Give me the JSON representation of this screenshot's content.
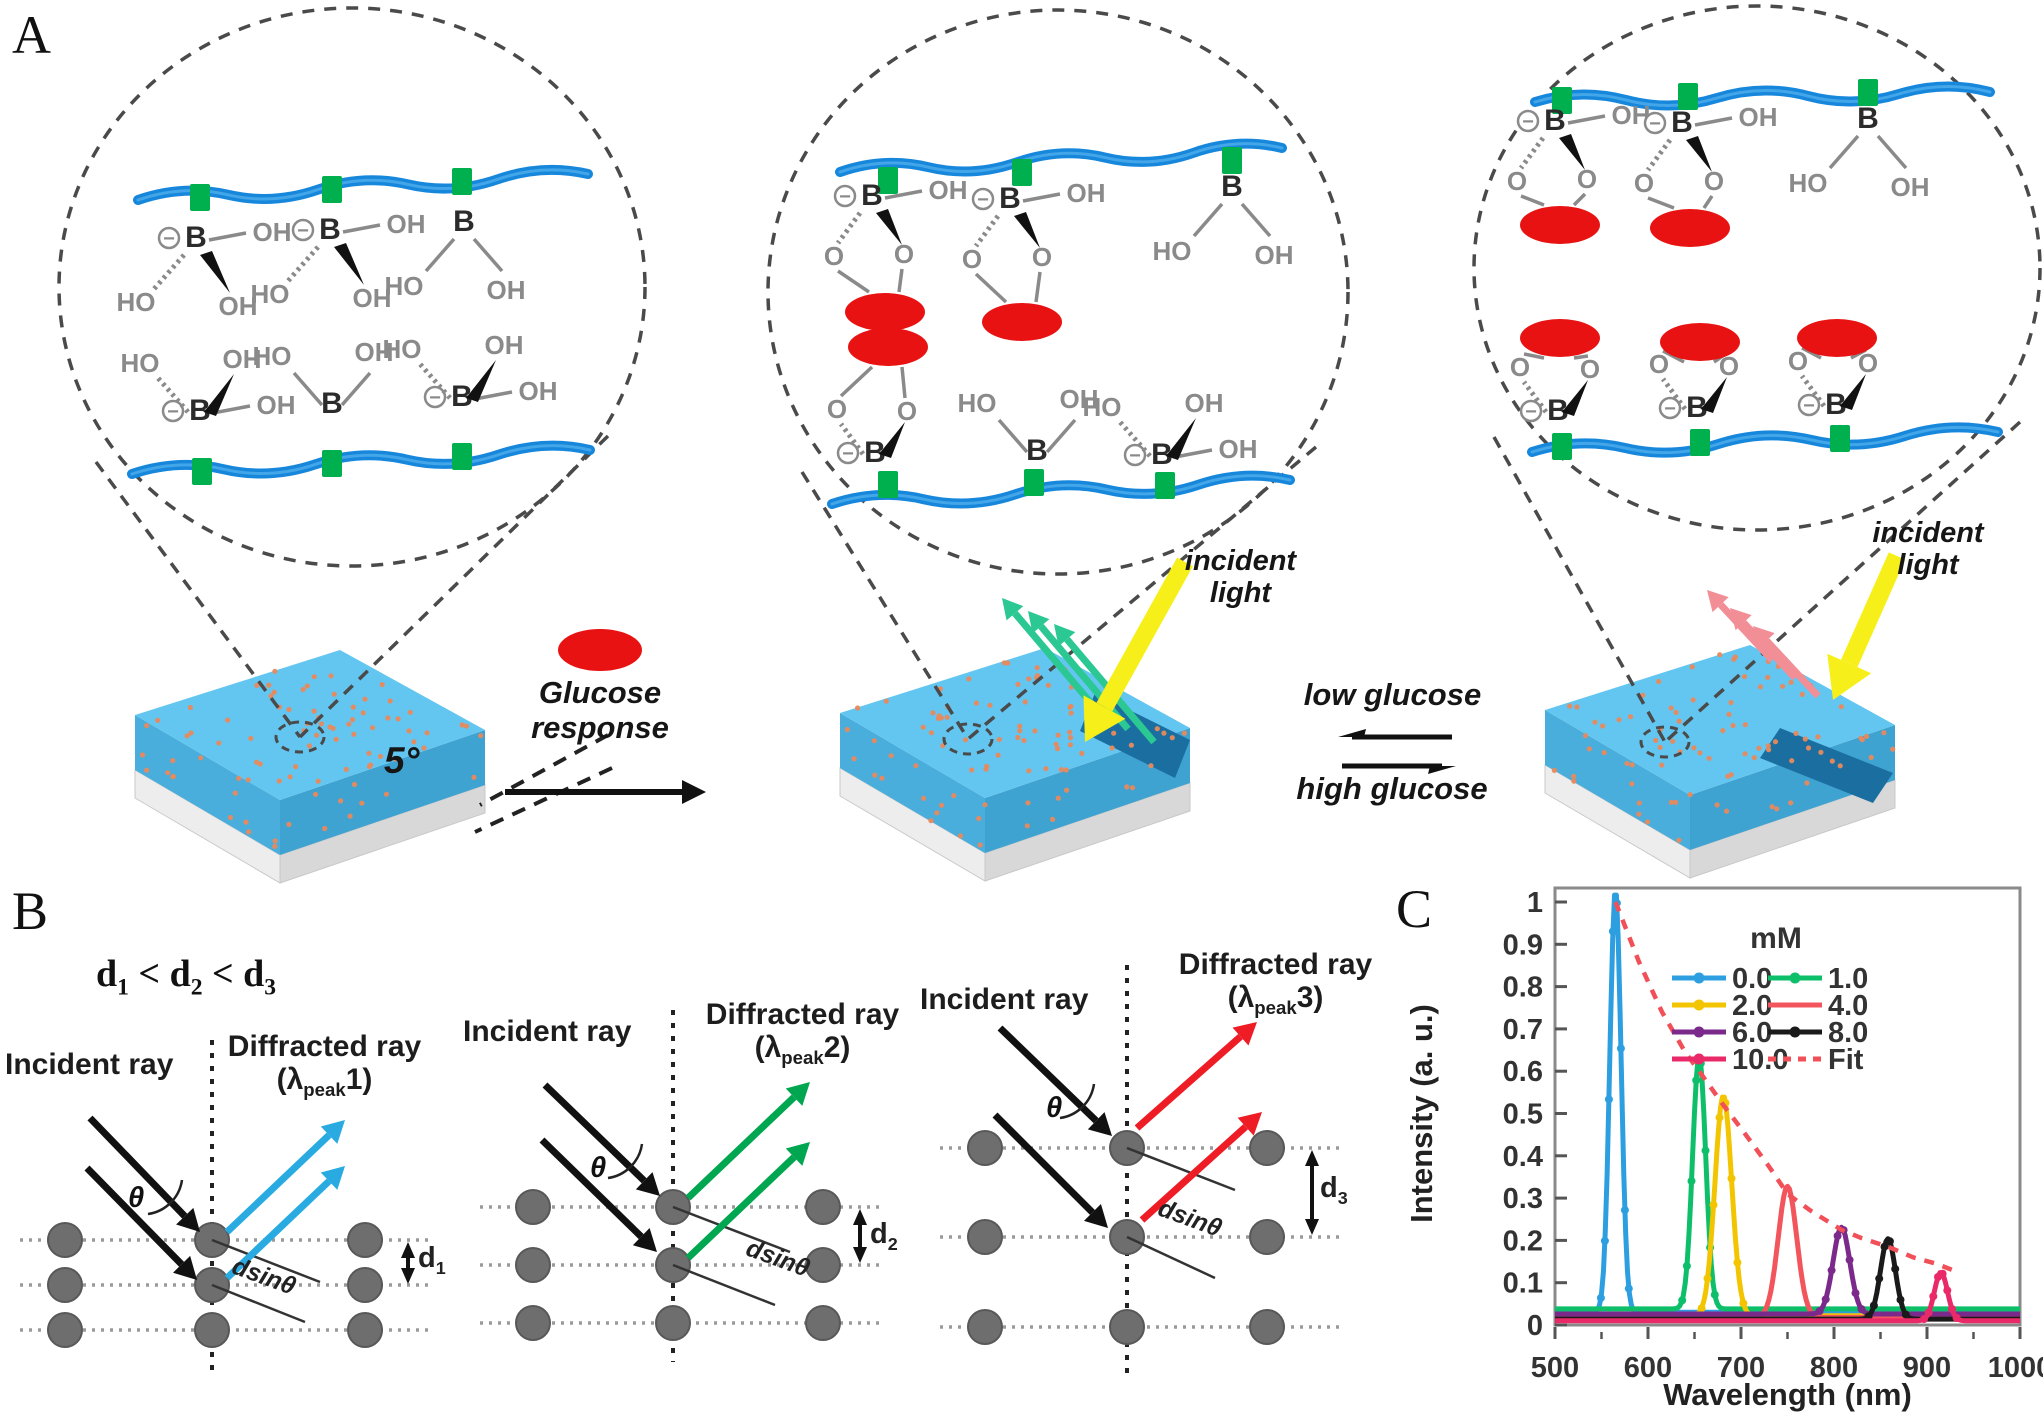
{
  "panel_a": {
    "label": "A",
    "glucose_response": [
      "Glucose",
      "response"
    ],
    "equilibrium_top": "low glucose",
    "equilibrium_bottom": "high glucose",
    "incident_light": [
      "incident",
      "light"
    ],
    "tilt_angle": "5°",
    "chem": {
      "b": "B",
      "oh": "OH",
      "ho": "HO",
      "o": "O",
      "minus": "−"
    }
  },
  "panel_b": {
    "label": "B",
    "inequality": {
      "term": "d",
      "sub1": "1",
      "sub2": "2",
      "sub3": "3",
      "lt": "<"
    },
    "incident_ray": "Incident ray",
    "diffracted_ray": "Diffracted ray",
    "lambda_prefix": "(λ",
    "lambda_sub": "peak",
    "theta": "θ",
    "dsin_label": "dsinθ",
    "d_term": "d",
    "diagrams": [
      {
        "peak_suffix": "1)",
        "d_sub": "1"
      },
      {
        "peak_suffix": "2)",
        "d_sub": "2"
      },
      {
        "peak_suffix": "3)",
        "d_sub": "3"
      }
    ]
  },
  "panel_c": {
    "label": "C"
  },
  "colors": {
    "chain_blue": "#1787DC",
    "chain_sheen": "#55B4EC",
    "crosslinker_green": "#00AF4D",
    "glucose_red": "#E81212",
    "slab_top": "#63C6F0",
    "slab_front": "#49AEDC",
    "slab_side": "#3FA3D2",
    "slab_base_front": "#EDEDED",
    "slab_base_side": "#D8D8D8",
    "groove_blue": "#1B6FA0",
    "speckle_orange": "#E9895C",
    "incident_yellow": "#F7EF1A",
    "diffracted_teal": "#2BC893",
    "diffracted_pink": "#F28E96",
    "ray_cyan": "#29ABE2",
    "ray_green": "#00A650",
    "ray_red": "#EE1C25",
    "lattice_dot_gray": "#6E6E6E",
    "molecule_gray": "#8A8A8A",
    "dashed_gray": "#4A4A4A"
  },
  "chart_data": {
    "type": "line",
    "title": "",
    "xlabel": "Wavelength (nm)",
    "ylabel": "Intensity (a. u.)",
    "xlim": [
      500,
      1000
    ],
    "ylim": [
      0,
      1
    ],
    "xticks": [
      500,
      600,
      700,
      800,
      900,
      1000
    ],
    "yticks": [
      0,
      0.1,
      0.2,
      0.3,
      0.4,
      0.5,
      0.6,
      0.7,
      0.8,
      0.9,
      1
    ],
    "grid": false,
    "legend_title": "mM",
    "legend_position": "top-right",
    "series": [
      {
        "name": "0.0",
        "color": "#2D9FE0",
        "marker": true,
        "peak_nm": 565,
        "peak_intensity": 1.0,
        "sigma_nm": 6,
        "baseline": 0.03
      },
      {
        "name": "1.0",
        "color": "#0EBF6A",
        "marker": true,
        "peak_nm": 655,
        "peak_intensity": 0.6,
        "sigma_nm": 7,
        "baseline": 0.038
      },
      {
        "name": "2.0",
        "color": "#F2C500",
        "marker": true,
        "peak_nm": 681,
        "peak_intensity": 0.52,
        "sigma_nm": 9,
        "baseline": 0.022
      },
      {
        "name": "4.0",
        "color": "#F2555C",
        "marker": false,
        "peak_nm": 750,
        "peak_intensity": 0.31,
        "sigma_nm": 10,
        "baseline": 0.018
      },
      {
        "name": "6.0",
        "color": "#7B2A8C",
        "marker": true,
        "peak_nm": 808,
        "peak_intensity": 0.205,
        "sigma_nm": 9,
        "baseline": 0.026
      },
      {
        "name": "8.0",
        "color": "#1A1A1A",
        "marker": true,
        "peak_nm": 858,
        "peak_intensity": 0.19,
        "sigma_nm": 8,
        "baseline": 0.014
      },
      {
        "name": "10.0",
        "color": "#EA2A68",
        "marker": true,
        "peak_nm": 915,
        "peak_intensity": 0.115,
        "sigma_nm": 7,
        "baseline": 0.01
      }
    ],
    "fit": {
      "name": "Fit",
      "color": "#F25059",
      "points": [
        [
          565,
          1.0
        ],
        [
          590,
          0.86
        ],
        [
          615,
          0.74
        ],
        [
          640,
          0.645
        ],
        [
          655,
          0.6
        ],
        [
          681,
          0.52
        ],
        [
          705,
          0.45
        ],
        [
          730,
          0.375
        ],
        [
          750,
          0.31
        ],
        [
          775,
          0.27
        ],
        [
          808,
          0.225
        ],
        [
          830,
          0.205
        ],
        [
          858,
          0.185
        ],
        [
          885,
          0.16
        ],
        [
          910,
          0.145
        ],
        [
          933,
          0.125
        ]
      ]
    }
  }
}
